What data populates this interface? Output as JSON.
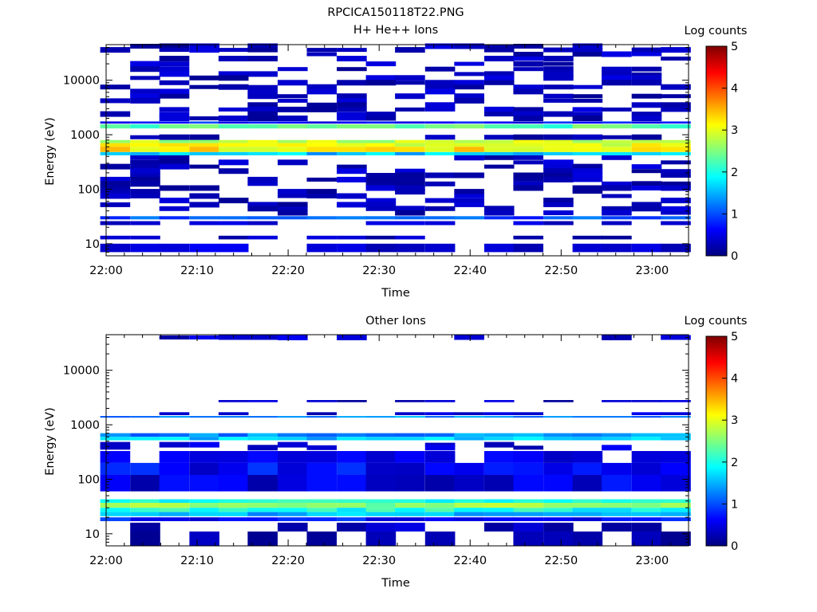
{
  "figure": {
    "title": "RPCICA150118T22.PNG"
  },
  "colors": {
    "scale": [
      "#00007f",
      "#0000ff",
      "#007fff",
      "#00ffff",
      "#7fff7f",
      "#ffff00",
      "#ff7f00",
      "#ff0000",
      "#7f0000"
    ]
  },
  "chart_data": [
    {
      "type": "heatmap",
      "title": "H+ He++ Ions",
      "xlabel": "Time",
      "ylabel": "Energy (eV)",
      "x_ticks": [
        "22:00",
        "22:10",
        "22:20",
        "22:30",
        "22:40",
        "22:50",
        "23:00"
      ],
      "x_tick_minutes": [
        0,
        10,
        20,
        30,
        40,
        50,
        60
      ],
      "xlim_minutes": [
        0,
        64
      ],
      "y_scale": "log",
      "ylim": [
        6,
        45000
      ],
      "y_ticks": [
        "10",
        "100",
        "1000",
        "10000"
      ],
      "y_tick_values": [
        10,
        100,
        1000,
        10000
      ],
      "colorbar": {
        "label": "Log counts",
        "range": [
          0,
          5
        ],
        "ticks": [
          "0",
          "1",
          "2",
          "3",
          "4",
          "5"
        ]
      },
      "time_bins_minutes": [
        1.0,
        4.3,
        7.5,
        10.8,
        14.0,
        17.2,
        20.5,
        23.7,
        27.0,
        30.2,
        33.4,
        36.7,
        39.9,
        43.2,
        46.4,
        49.7,
        52.9,
        56.1,
        59.4,
        62.6
      ],
      "cells": [
        {
          "e": [
            1600,
            1750
          ],
          "c": 0.7
        },
        {
          "e": [
            1300,
            1550
          ],
          "c": 2.3
        },
        {
          "e": [
            700,
            800
          ],
          "c": 2.8
        },
        {
          "e": [
            600,
            700
          ],
          "c": 3.0
        },
        {
          "e": [
            480,
            600
          ],
          "c": 3.2
        },
        {
          "e": [
            420,
            480
          ],
          "c": 1.6
        },
        {
          "e": [
            28,
            32
          ],
          "c": 1.0
        },
        {
          "e": [
            22,
            26
          ],
          "c": 0.3
        },
        {
          "e": [
            12,
            14
          ],
          "c": 0.2
        },
        {
          "e": [
            7,
            10
          ],
          "c": 0.3
        }
      ],
      "sparse_energies": [
        42000,
        36000,
        30000,
        25000,
        20000,
        16000,
        13000,
        11000,
        9000,
        7500,
        6200,
        5100,
        4200,
        3500,
        2900,
        2400,
        2000,
        900,
        380,
        310,
        260,
        215,
        180,
        150,
        125,
        105,
        90,
        75,
        62,
        52,
        44,
        37
      ],
      "sparse_count": 0.1
    },
    {
      "type": "heatmap",
      "title": "Other Ions",
      "xlabel": "Time",
      "ylabel": "Energy (eV)",
      "x_ticks": [
        "22:00",
        "22:10",
        "22:20",
        "22:30",
        "22:40",
        "22:50",
        "23:00"
      ],
      "x_tick_minutes": [
        0,
        10,
        20,
        30,
        40,
        50,
        60
      ],
      "xlim_minutes": [
        0,
        64
      ],
      "y_scale": "log",
      "ylim": [
        6,
        45000
      ],
      "y_ticks": [
        "10",
        "100",
        "1000",
        "10000"
      ],
      "y_tick_values": [
        10,
        100,
        1000,
        10000
      ],
      "colorbar": {
        "label": "Log counts",
        "range": [
          0,
          5
        ],
        "ticks": [
          "0",
          "1",
          "2",
          "3",
          "4",
          "5"
        ]
      },
      "time_bins_minutes": [
        1.0,
        4.3,
        7.5,
        10.8,
        14.0,
        17.2,
        20.5,
        23.7,
        27.0,
        30.2,
        33.4,
        36.7,
        39.9,
        43.2,
        46.4,
        49.7,
        52.9,
        56.1,
        59.4,
        62.6
      ],
      "cells": [
        {
          "e": [
            2600,
            2850
          ],
          "c": 0.2
        },
        {
          "e": [
            1500,
            1700
          ],
          "c": 0.3
        },
        {
          "e": [
            1350,
            1450
          ],
          "c": 1.3
        },
        {
          "e": [
            600,
            700
          ],
          "c": 1.3
        },
        {
          "e": [
            520,
            600
          ],
          "c": 1.6
        },
        {
          "e": [
            200,
            330
          ],
          "c": 0.4
        },
        {
          "e": [
            120,
            200
          ],
          "c": 0.6
        },
        {
          "e": [
            60,
            120
          ],
          "c": 0.5
        },
        {
          "e": [
            37,
            43
          ],
          "c": 2.0
        },
        {
          "e": [
            30,
            37
          ],
          "c": 2.6
        },
        {
          "e": [
            25,
            30
          ],
          "c": 2.0
        },
        {
          "e": [
            21,
            25
          ],
          "c": 1.5
        },
        {
          "e": [
            17,
            20
          ],
          "c": 0.7
        },
        {
          "e": [
            11,
            16
          ],
          "c": 0.2
        },
        {
          "e": [
            6,
            11
          ],
          "c": 0.1
        }
      ],
      "sparse_energies": [
        40000,
        430,
        380
      ],
      "sparse_count": 0.2
    }
  ]
}
